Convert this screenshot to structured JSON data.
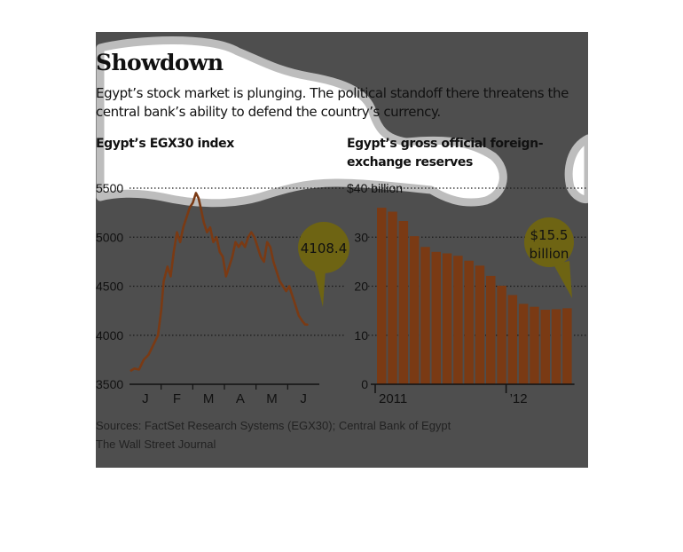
{
  "title": "Showdown",
  "subtitle": "Egypt’s stock market is plunging. The political standoff there threatens the central bank’s ability to defend the country’s currency.",
  "sources": "Sources: FactSet Research Systems (EGX30); Central Bank of Egypt",
  "credit": "The Wall Street Journal",
  "colors": {
    "panel": "#4e4e4e",
    "bar": "#7a3a14",
    "line": "#7a3a14",
    "callout": "#6e6413",
    "text": "#111111"
  },
  "chart_data": [
    {
      "type": "line",
      "title": "Egypt’s EGX30 index",
      "ylim": [
        3500,
        5500
      ],
      "yticks": [
        3500,
        4000,
        4500,
        5000,
        5500
      ],
      "ytick_labels": [
        "3500",
        "4000",
        "4500",
        "5000",
        "5500"
      ],
      "xlim": [
        0,
        6
      ],
      "xticks": [
        0.5,
        1.5,
        2.5,
        3.5,
        4.5,
        5.5
      ],
      "xtick_labels": [
        "J",
        "F",
        "M",
        "A",
        "M",
        "J"
      ],
      "grid": true,
      "callout": "4108.4",
      "series": [
        {
          "x": [
            0.05,
            0.15,
            0.3,
            0.45,
            0.6,
            0.75,
            0.9,
            1.0,
            1.08,
            1.2,
            1.3,
            1.4,
            1.5,
            1.6,
            1.7,
            1.8,
            1.9,
            2.0,
            2.1,
            2.18,
            2.25,
            2.35,
            2.45,
            2.55,
            2.65,
            2.75,
            2.85,
            2.95,
            3.05,
            3.15,
            3.25,
            3.35,
            3.45,
            3.55,
            3.65,
            3.75,
            3.85,
            3.95,
            4.05,
            4.15,
            4.25,
            4.35,
            4.45,
            4.55,
            4.65,
            4.75,
            4.85,
            4.95,
            5.05,
            5.15,
            5.25,
            5.35,
            5.45,
            5.55,
            5.62
          ],
          "y": [
            3640,
            3660,
            3650,
            3750,
            3800,
            3900,
            4000,
            4250,
            4550,
            4700,
            4600,
            4850,
            5050,
            4950,
            5100,
            5200,
            5300,
            5350,
            5450,
            5400,
            5300,
            5150,
            5050,
            5100,
            4950,
            5000,
            4850,
            4800,
            4600,
            4700,
            4800,
            4950,
            4900,
            4950,
            4900,
            5000,
            5050,
            5000,
            4900,
            4800,
            4750,
            4950,
            4900,
            4750,
            4650,
            4550,
            4500,
            4450,
            4500,
            4400,
            4300,
            4200,
            4150,
            4110,
            4108.4
          ]
        }
      ]
    },
    {
      "type": "bar",
      "title": "Egypt’s gross official foreign-exchange reserves",
      "ylim": [
        0,
        40
      ],
      "yticks": [
        0,
        10,
        20,
        30,
        40
      ],
      "ytick_labels": [
        "0",
        "10",
        "20",
        "30",
        "$40 billion"
      ],
      "categories": [
        "2011",
        "",
        "",
        "",
        "",
        "",
        "",
        "",
        "",
        "",
        "",
        "",
        "’12",
        "",
        "",
        "",
        "",
        ""
      ],
      "values": [
        36,
        35.2,
        33.3,
        30.2,
        28,
        27,
        26.7,
        26.2,
        25.2,
        24.2,
        22.1,
        20.1,
        18.2,
        16.4,
        15.8,
        15.2,
        15.3,
        15.5
      ],
      "grid": true,
      "callout": "$15.5 billion"
    }
  ]
}
